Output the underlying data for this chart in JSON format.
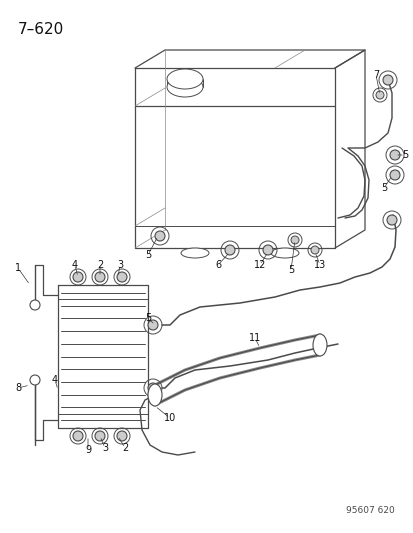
{
  "title": "7–620",
  "part_number": "95607 620",
  "bg": "#ffffff",
  "lc": "#4a4a4a",
  "lc_light": "#888888",
  "title_fs": 11,
  "label_fs": 7,
  "pn_fs": 6.5
}
